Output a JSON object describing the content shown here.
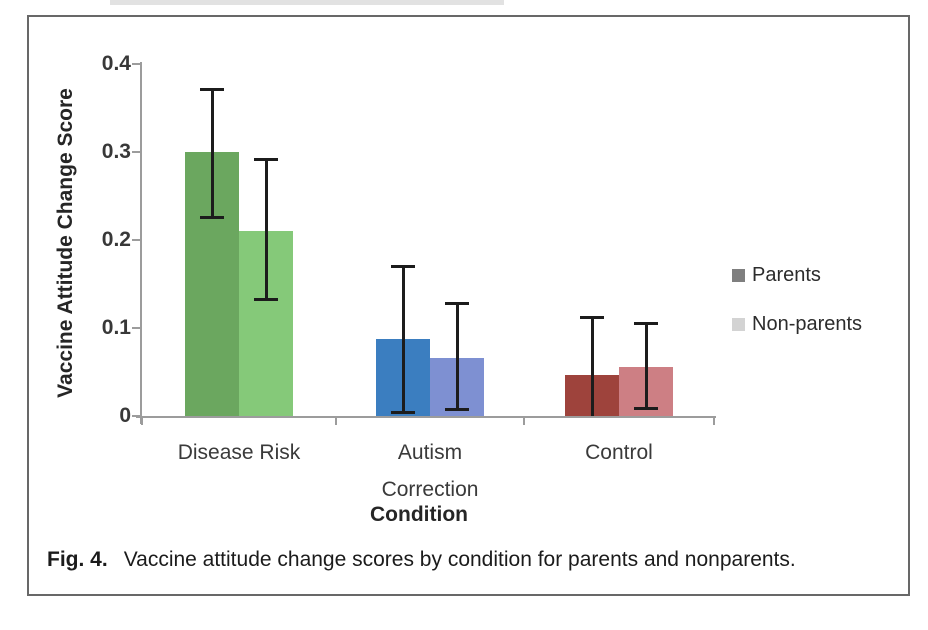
{
  "caption": {
    "label": "Fig. 4.",
    "text": "Vaccine attitude change scores by condition for parents and nonparents."
  },
  "chart_data": {
    "type": "bar",
    "title": "",
    "xlabel": "Condition",
    "ylabel": "Vaccine Attitude Change Score",
    "categories": [
      "Disease Risk",
      "Autism\nCorrection",
      "Control"
    ],
    "ylim": [
      0,
      0.4
    ],
    "yticks": [
      0,
      0.1,
      0.2,
      0.3,
      0.4
    ],
    "ytick_labels": [
      "0",
      "0.1",
      "0.2",
      "0.3",
      "0.4"
    ],
    "grid": false,
    "legend_position": "right",
    "error_bars": true,
    "series": [
      {
        "name": "Parents",
        "legend_swatch": "#7F7F7F",
        "values": [
          0.3,
          0.087,
          0.047
        ],
        "error_upper": [
          0.372,
          0.17,
          0.112
        ],
        "error_lower": [
          0.225,
          0.003,
          0.0
        ],
        "error_lower_capped": [
          true,
          true,
          false
        ],
        "bar_colors": [
          "#6BA75F",
          "#3B7EC0",
          "#9E433C"
        ]
      },
      {
        "name": "Non-parents",
        "legend_swatch": "#D3D3D3",
        "values": [
          0.21,
          0.066,
          0.056
        ],
        "error_upper": [
          0.292,
          0.128,
          0.106
        ],
        "error_lower": [
          0.132,
          0.007,
          0.008
        ],
        "error_lower_capped": [
          true,
          true,
          true
        ],
        "bar_colors": [
          "#85C979",
          "#7E90D2",
          "#CD7F84"
        ]
      }
    ]
  }
}
